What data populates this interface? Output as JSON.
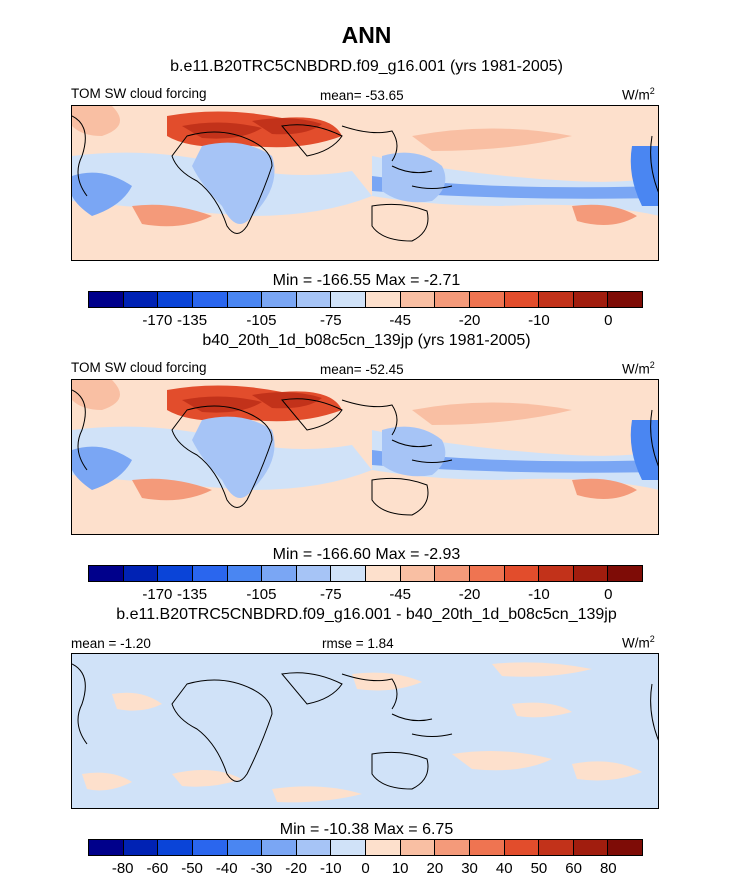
{
  "title": "ANN",
  "panels": [
    {
      "subtitle": "b.e11.B20TRC5CNBDRD.f09_g16.001 (yrs 1981-2005)",
      "left_label": "TOM SW cloud forcing",
      "center_label": "mean= -53.65",
      "units": "W/m",
      "units_exp": "2",
      "minmax": "Min = -166.55 Max =  -2.71",
      "colorbar_ticks": [
        "-170",
        "-135",
        "-105",
        "-75",
        "-45",
        "-20",
        "-10",
        "0"
      ]
    },
    {
      "subtitle": "b40_20th_1d_b08c5cn_139jp (yrs 1981-2005)",
      "left_label": "TOM SW cloud forcing",
      "center_label": "mean= -52.45",
      "units": "W/m",
      "units_exp": "2",
      "minmax": "Min = -166.60 Max =  -2.93",
      "colorbar_ticks": [
        "-170",
        "-135",
        "-105",
        "-75",
        "-45",
        "-20",
        "-10",
        "0"
      ]
    },
    {
      "subtitle": "b.e11.B20TRC5CNBDRD.f09_g16.001 - b40_20th_1d_b08c5cn_139jp",
      "left_label": "mean =  -1.20",
      "center_label": "rmse =   1.84",
      "units": "W/m",
      "units_exp": "2",
      "minmax": "Min = -10.38 Max =   6.75",
      "colorbar_ticks": [
        "-80",
        "-60",
        "-50",
        "-40",
        "-30",
        "-20",
        "-10",
        "0",
        "10",
        "20",
        "30",
        "40",
        "50",
        "60",
        "80"
      ]
    }
  ],
  "colors": {
    "abs_scale": [
      "#00008b",
      "#0022b4",
      "#0a44d8",
      "#2a66ee",
      "#4a86f2",
      "#7aa6f4",
      "#a6c4f6",
      "#d0e2f8",
      "#fde0cc",
      "#f9bfa3",
      "#f49a7a",
      "#ef7451",
      "#e24d2c",
      "#c2321a",
      "#a11d0e",
      "#7e0c06"
    ],
    "diff_scale": [
      "#00008b",
      "#0022b4",
      "#0a44d8",
      "#2a66ee",
      "#4a86f2",
      "#7aa6f4",
      "#a6c4f6",
      "#d0e2f8",
      "#fde0cc",
      "#f9bfa3",
      "#f49a7a",
      "#ef7451",
      "#e24d2c",
      "#c2321a",
      "#a11d0e",
      "#7e0c06"
    ]
  }
}
